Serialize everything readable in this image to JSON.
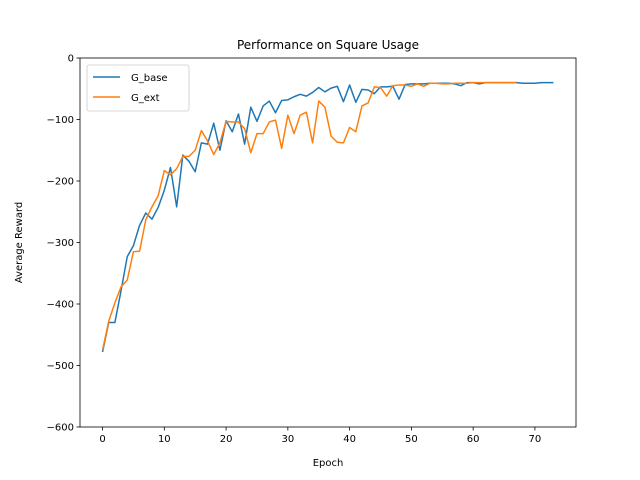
{
  "chart_data": {
    "type": "line",
    "title": "Performance on Square Usage",
    "xlabel": "Epoch",
    "ylabel": "Average Reward",
    "xlim": [
      -3.65,
      76.65
    ],
    "ylim": [
      -600,
      0
    ],
    "xticks": [
      0,
      10,
      20,
      30,
      40,
      50,
      60,
      70
    ],
    "yticks": [
      -600,
      -500,
      -400,
      -300,
      -200,
      -100,
      0
    ],
    "ytick_labels": [
      "−600",
      "−500",
      "−400",
      "−300",
      "−200",
      "−100",
      "0"
    ],
    "grid": false,
    "legend_position": "upper-left",
    "series": [
      {
        "name": "G_base",
        "color": "#1f77b4",
        "x": [
          0,
          1,
          2,
          3,
          4,
          5,
          6,
          7,
          8,
          9,
          10,
          11,
          12,
          13,
          14,
          15,
          16,
          17,
          18,
          19,
          20,
          21,
          22,
          23,
          24,
          25,
          26,
          27,
          28,
          29,
          30,
          31,
          32,
          33,
          34,
          35,
          36,
          37,
          38,
          39,
          40,
          41,
          42,
          43,
          44,
          45,
          46,
          47,
          48,
          49,
          50,
          51,
          52,
          53,
          54,
          55,
          56,
          57,
          58,
          59,
          60,
          61,
          62,
          63,
          64,
          65,
          66,
          67,
          68,
          69,
          70,
          71,
          72,
          73
        ],
        "y": [
          -478,
          -430,
          -430,
          -378,
          -323,
          -305,
          -272,
          -252,
          -262,
          -243,
          -215,
          -178,
          -242,
          -158,
          -168,
          -185,
          -138,
          -140,
          -106,
          -150,
          -102,
          -120,
          -91,
          -140,
          -80,
          -103,
          -78,
          -70,
          -89,
          -69,
          -68,
          -63,
          -59,
          -62,
          -56,
          -48,
          -55,
          -49,
          -46,
          -71,
          -44,
          -72,
          -51,
          -52,
          -58,
          -47,
          -47,
          -46,
          -67,
          -43,
          -42,
          -42,
          -42,
          -41,
          -41,
          -41,
          -41,
          -42,
          -45,
          -40,
          -40,
          -42,
          -40,
          -40,
          -40,
          -40,
          -40,
          -40,
          -41,
          -41,
          -41,
          -40,
          -40,
          -40
        ]
      },
      {
        "name": "G_ext",
        "color": "#ff7f0e",
        "x": [
          0,
          1,
          2,
          3,
          4,
          5,
          6,
          7,
          8,
          9,
          10,
          11,
          12,
          13,
          14,
          15,
          16,
          17,
          18,
          19,
          20,
          21,
          22,
          23,
          24,
          25,
          26,
          27,
          28,
          29,
          30,
          31,
          32,
          33,
          34,
          35,
          36,
          37,
          38,
          39,
          40,
          41,
          42,
          43,
          44,
          45,
          46,
          47,
          48,
          49,
          50,
          51,
          52,
          53,
          54,
          55,
          56,
          57,
          58,
          59,
          60,
          61,
          62,
          63,
          64,
          65,
          66,
          67
        ],
        "y": [
          -475,
          -428,
          -398,
          -372,
          -361,
          -315,
          -314,
          -263,
          -242,
          -224,
          -183,
          -190,
          -180,
          -160,
          -160,
          -150,
          -118,
          -135,
          -157,
          -138,
          -103,
          -104,
          -104,
          -115,
          -154,
          -123,
          -123,
          -104,
          -101,
          -147,
          -93,
          -123,
          -93,
          -88,
          -138,
          -70,
          -80,
          -127,
          -137,
          -138,
          -113,
          -120,
          -78,
          -73,
          -47,
          -48,
          -62,
          -45,
          -44,
          -44,
          -46,
          -42,
          -46,
          -41,
          -41,
          -42,
          -42,
          -41,
          -41,
          -41,
          -40,
          -40,
          -40,
          -40,
          -40,
          -40,
          -40,
          -40
        ]
      }
    ]
  }
}
